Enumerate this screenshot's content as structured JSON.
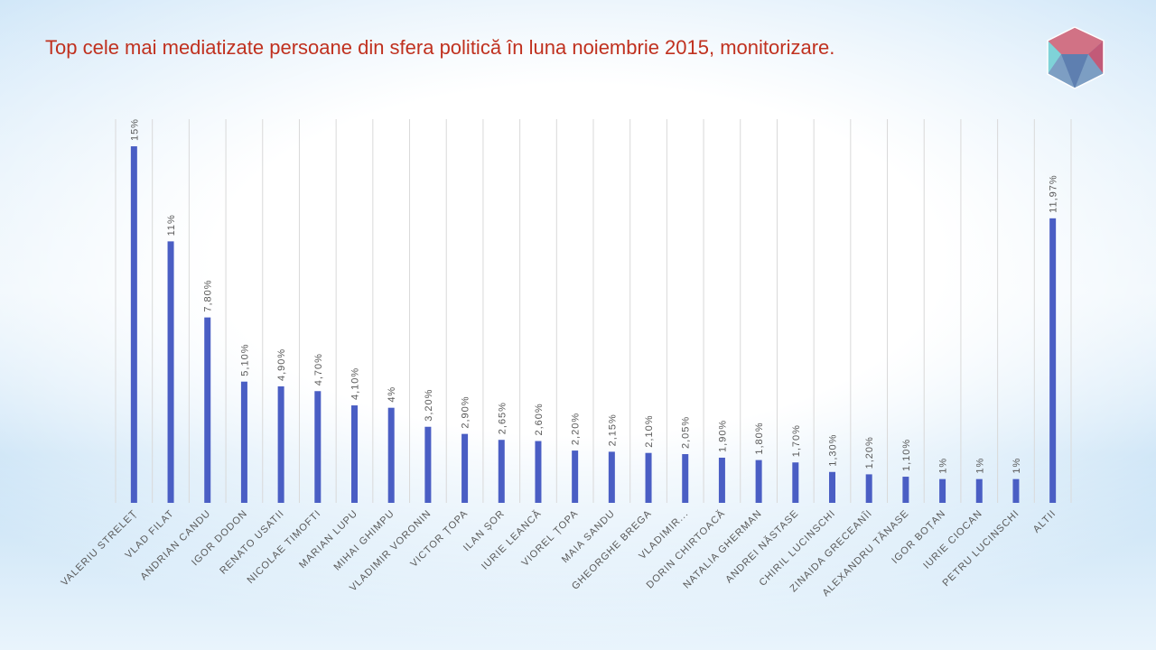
{
  "chart_data": {
    "type": "bar",
    "title": "Top cele mai mediatizate persoane din sfera politică în luna noiembrie 2015, monitorizare.",
    "categories": [
      "VALERIU STRELEȚ",
      "VLAD FILAT",
      "ANDRIAN CANDU",
      "IGOR DODON",
      "RENATO USATII",
      "NICOLAE TIMOFTI",
      "MARIAN LUPU",
      "MIHAI GHIMPU",
      "VLADIMIR VORONIN",
      "VICTOR ȚOPA",
      "ILAN ȘOR",
      "IURIE LEANCĂ",
      "VIOREL ȚOPA",
      "MAIA SANDU",
      "GHEORGHE BREGA",
      "VLADIMIR...",
      "DORIN CHIRTOACĂ",
      "NATALIA GHERMAN",
      "ANDREI NĂSTASE",
      "CHIRIL LUCINSCHI",
      "ZINAIDA GRECEANÎI",
      "ALEXANDRU TĂNASE",
      "IGOR BOȚAN",
      "IURIE CIOCAN",
      "PETRU LUCINSCHI",
      "ALTII"
    ],
    "values": [
      15,
      11,
      7.8,
      5.1,
      4.9,
      4.7,
      4.1,
      4,
      3.2,
      2.9,
      2.65,
      2.6,
      2.2,
      2.15,
      2.1,
      2.05,
      1.9,
      1.8,
      1.7,
      1.3,
      1.2,
      1.1,
      1,
      1,
      1,
      11.97
    ],
    "value_labels": [
      "15%",
      "11%",
      "7,80%",
      "5,10%",
      "4,90%",
      "4,70%",
      "4,10%",
      "4%",
      "3,20%",
      "2,90%",
      "2,65%",
      "2,60%",
      "2,20%",
      "2,15%",
      "2,10%",
      "2,05%",
      "1,90%",
      "1,80%",
      "1,70%",
      "1,30%",
      "1,20%",
      "1,10%",
      "1%",
      "1%",
      "1%",
      "11,97%"
    ],
    "color": "#4a5ec4",
    "grid": true
  }
}
